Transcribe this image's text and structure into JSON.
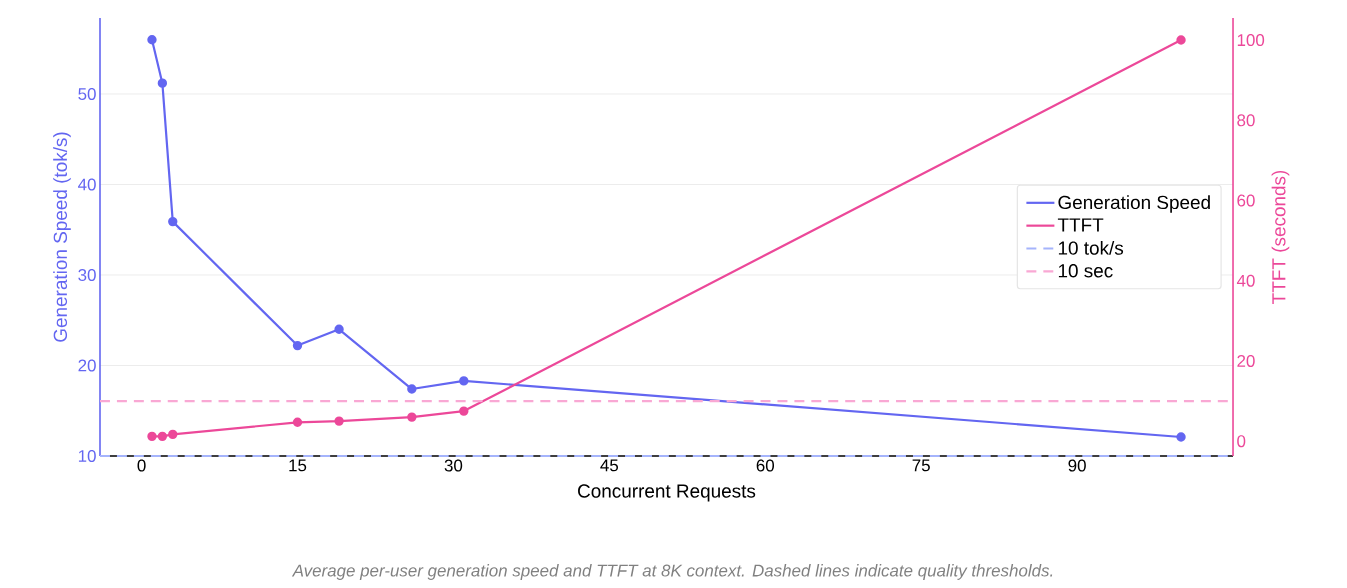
{
  "chart_data": {
    "type": "line",
    "xlabel": "Concurrent Requests",
    "ylabel": "Generation Speed (tok/s)",
    "y2label": "TTFT (seconds)",
    "annotations": [
      "Average per-user generation speed and TTFT at 8K context. Dashed lines indicate quality thresholds."
    ],
    "x": [
      1,
      2,
      3,
      15,
      19,
      26,
      31,
      100
    ],
    "series": [
      {
        "name": "Generation Speed",
        "color": "#6366f1",
        "values": [
          56,
          51.2,
          35.9,
          22.2,
          24,
          17.4,
          18.3,
          12.1
        ],
        "axis": "y"
      },
      {
        "name": "TTFT",
        "color": "#ec4899",
        "values": [
          1.2,
          1.2,
          1.7,
          4.7,
          5,
          6,
          7.5,
          100
        ],
        "axis": "y2"
      }
    ],
    "xlim": [
      -4,
      105
    ],
    "xticks": [
      0,
      15,
      30,
      45,
      60,
      75,
      90
    ],
    "ylim": [
      10,
      58.4
    ],
    "yticks": [
      10,
      20,
      30,
      40,
      50
    ],
    "y2lim": [
      -3.7,
      105.5
    ],
    "y2ticks": [
      0,
      20,
      40,
      60,
      80,
      100
    ],
    "ref_lines": [
      {
        "axis": "y",
        "value": 10,
        "label": "10 tok/s",
        "color": "#a5b4fc",
        "line_style": "dashed"
      },
      {
        "axis": "y2",
        "value": 10,
        "label": "10 sec",
        "color": "#f9a8d4",
        "line_style": "dashed"
      }
    ],
    "grid": "y",
    "legend": "right",
    "marker": "circle",
    "line_style": "solid"
  }
}
